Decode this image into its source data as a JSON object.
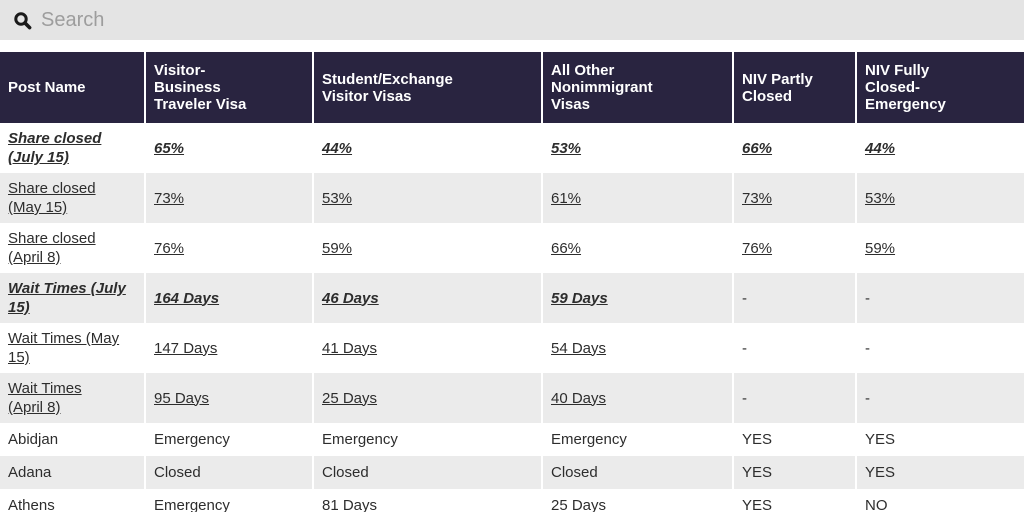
{
  "search": {
    "placeholder": "Search"
  },
  "colors": {
    "header_bg": "#292440",
    "header_text": "#ffffff",
    "search_bg": "#e4e4e4",
    "alt_row_bg": "#ebebeb",
    "body_text": "#2d2d2d",
    "placeholder_text": "#9d9d9d"
  },
  "icons": {
    "search": "magnifying-glass"
  },
  "table": {
    "columns": [
      "Post Name",
      "Visitor-\nBusiness\nTraveler Visa",
      "Student/Exchange\nVisitor Visas",
      "All Other\nNonimmigrant\nVisas",
      "NIV Partly\nClosed",
      "NIV Fully\nClosed-\nEmergency"
    ],
    "rows": [
      {
        "label": "Share closed\n(July 15)",
        "cells": [
          "65%",
          "44%",
          "53%",
          "66%",
          "44%"
        ],
        "style": "emphasis-link"
      },
      {
        "label": "Share closed\n(May 15)",
        "cells": [
          "73%",
          "53%",
          "61%",
          "73%",
          "53%"
        ],
        "style": "link"
      },
      {
        "label": "Share closed\n(April 8)",
        "cells": [
          "76%",
          "59%",
          "66%",
          "76%",
          "59%"
        ],
        "style": "link"
      },
      {
        "label": "Wait Times (July\n15)",
        "cells": [
          "164 Days",
          "46 Days",
          "59 Days",
          "-",
          "-"
        ],
        "style": "emphasis-link"
      },
      {
        "label": "Wait Times (May\n15)",
        "cells": [
          "147 Days",
          "41 Days",
          "54 Days",
          "-",
          "-"
        ],
        "style": "link"
      },
      {
        "label": "Wait Times\n(April 8)",
        "cells": [
          "95 Days",
          "25 Days",
          "40 Days",
          "-",
          "-"
        ],
        "style": "link"
      },
      {
        "label": "Abidjan",
        "cells": [
          "Emergency",
          "Emergency",
          "Emergency",
          "YES",
          "YES"
        ],
        "style": "plain"
      },
      {
        "label": "Adana",
        "cells": [
          "Closed",
          "Closed",
          "Closed",
          "YES",
          "YES"
        ],
        "style": "plain"
      },
      {
        "label": "Athens",
        "cells": [
          "Emergency",
          "81 Days",
          "25 Days",
          "YES",
          "NO"
        ],
        "style": "plain"
      }
    ]
  }
}
